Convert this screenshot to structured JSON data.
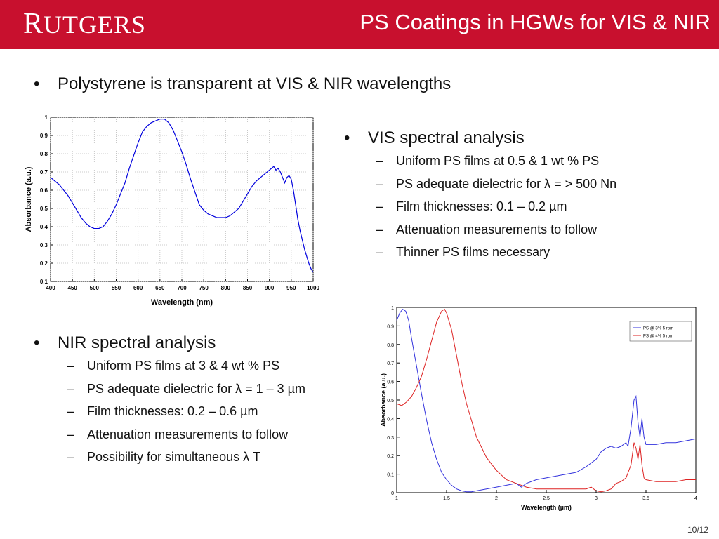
{
  "header": {
    "logo": "RUTGERS",
    "title": "PS Coatings in HGWs for VIS & NIR",
    "bg_color": "#c8102e"
  },
  "bullet_main": "Polystyrene is transparent at VIS & NIR wavelengths",
  "vis": {
    "heading": "VIS spectral analysis",
    "items": [
      "Uniform PS films at 0.5 & 1 wt % PS",
      "PS adequate dielectric for λ = > 500 Nn",
      "Film thicknesses: 0.1 – 0.2 µm",
      "Attenuation measurements to follow",
      "Thinner PS films necessary"
    ]
  },
  "nir": {
    "heading": "NIR spectral analysis",
    "items": [
      "Uniform PS films at 3 & 4 wt % PS",
      "PS adequate dielectric for λ = 1 – 3 µm",
      "Film thicknesses: 0.2 – 0.6 µm",
      "Attenuation measurements to follow",
      "Possibility for simultaneous λ T"
    ]
  },
  "page_number": "10/12",
  "chart_data": [
    {
      "type": "line",
      "xlabel": "Wavelength (nm)",
      "ylabel": "Absorbance (a.u.)",
      "xlim": [
        400,
        1000
      ],
      "ylim": [
        0.1,
        1
      ],
      "xticks": [
        "400",
        "450",
        "500",
        "550",
        "600",
        "650",
        "700",
        "750",
        "800",
        "850",
        "900",
        "950",
        "1000"
      ],
      "yticks": [
        "0.1",
        "0.2",
        "0.3",
        "0.4",
        "0.5",
        "0.6",
        "0.7",
        "0.8",
        "0.9",
        "1"
      ],
      "grid": true,
      "series": [
        {
          "color": "#0000dd",
          "x": [
            400,
            410,
            420,
            430,
            440,
            450,
            460,
            470,
            480,
            490,
            500,
            510,
            520,
            530,
            540,
            550,
            560,
            570,
            580,
            590,
            600,
            610,
            620,
            630,
            640,
            650,
            655,
            660,
            670,
            680,
            690,
            700,
            710,
            720,
            730,
            740,
            750,
            760,
            770,
            780,
            790,
            800,
            810,
            820,
            830,
            840,
            850,
            860,
            870,
            880,
            890,
            900,
            905,
            910,
            915,
            920,
            925,
            930,
            935,
            940,
            945,
            950,
            955,
            960,
            965,
            970,
            975,
            980,
            985,
            990,
            995,
            1000
          ],
          "y": [
            0.67,
            0.65,
            0.63,
            0.6,
            0.57,
            0.53,
            0.49,
            0.45,
            0.42,
            0.4,
            0.39,
            0.39,
            0.4,
            0.43,
            0.47,
            0.52,
            0.58,
            0.64,
            0.72,
            0.79,
            0.86,
            0.92,
            0.95,
            0.97,
            0.98,
            0.99,
            0.99,
            0.99,
            0.97,
            0.93,
            0.87,
            0.81,
            0.74,
            0.66,
            0.59,
            0.52,
            0.49,
            0.47,
            0.46,
            0.45,
            0.45,
            0.45,
            0.46,
            0.48,
            0.5,
            0.54,
            0.58,
            0.62,
            0.65,
            0.67,
            0.69,
            0.71,
            0.72,
            0.73,
            0.71,
            0.72,
            0.7,
            0.67,
            0.64,
            0.67,
            0.68,
            0.66,
            0.6,
            0.52,
            0.44,
            0.38,
            0.33,
            0.28,
            0.24,
            0.2,
            0.17,
            0.15
          ]
        }
      ]
    },
    {
      "type": "line",
      "xlabel": "Wavelength (µm)",
      "ylabel": "Absorbance (a.u.)",
      "xlim": [
        1,
        4
      ],
      "ylim": [
        0,
        1
      ],
      "xticks": [
        "1",
        "1.5",
        "2",
        "2.5",
        "3",
        "3.5",
        "4"
      ],
      "yticks": [
        "0",
        "0.1",
        "0.2",
        "0.3",
        "0.4",
        "0.5",
        "0.6",
        "0.7",
        "0.8",
        "0.9",
        "1"
      ],
      "grid": false,
      "legend_position": "top-right",
      "series": [
        {
          "name": "PS @ 3% 5 rpm",
          "color": "#3333dd",
          "x": [
            1,
            1.03,
            1.06,
            1.09,
            1.12,
            1.15,
            1.2,
            1.25,
            1.3,
            1.35,
            1.4,
            1.45,
            1.5,
            1.55,
            1.6,
            1.65,
            1.7,
            1.75,
            1.8,
            1.9,
            2,
            2.1,
            2.2,
            2.25,
            2.3,
            2.4,
            2.5,
            2.6,
            2.7,
            2.8,
            2.9,
            3,
            3.05,
            3.1,
            3.15,
            3.2,
            3.25,
            3.3,
            3.32,
            3.35,
            3.38,
            3.4,
            3.42,
            3.44,
            3.46,
            3.48,
            3.5,
            3.6,
            3.7,
            3.8,
            3.9,
            4
          ],
          "y": [
            0.93,
            0.97,
            0.99,
            0.98,
            0.93,
            0.83,
            0.68,
            0.53,
            0.39,
            0.27,
            0.18,
            0.11,
            0.07,
            0.04,
            0.02,
            0.01,
            0.005,
            0.005,
            0.01,
            0.02,
            0.03,
            0.04,
            0.05,
            0.03,
            0.05,
            0.07,
            0.08,
            0.09,
            0.1,
            0.11,
            0.14,
            0.18,
            0.22,
            0.24,
            0.25,
            0.24,
            0.25,
            0.27,
            0.25,
            0.35,
            0.5,
            0.52,
            0.38,
            0.3,
            0.4,
            0.3,
            0.26,
            0.26,
            0.27,
            0.27,
            0.28,
            0.29
          ]
        },
        {
          "name": "PS @ 4% 5 rpm",
          "color": "#dd2222",
          "x": [
            1,
            1.05,
            1.1,
            1.15,
            1.2,
            1.25,
            1.3,
            1.35,
            1.4,
            1.45,
            1.48,
            1.5,
            1.55,
            1.6,
            1.65,
            1.7,
            1.8,
            1.9,
            2,
            2.1,
            2.2,
            2.3,
            2.4,
            2.5,
            2.6,
            2.7,
            2.8,
            2.9,
            2.95,
            3,
            3.05,
            3.1,
            3.15,
            3.2,
            3.25,
            3.3,
            3.35,
            3.38,
            3.4,
            3.42,
            3.44,
            3.46,
            3.48,
            3.5,
            3.6,
            3.7,
            3.8,
            3.9,
            4
          ],
          "y": [
            0.48,
            0.47,
            0.49,
            0.52,
            0.57,
            0.63,
            0.72,
            0.82,
            0.92,
            0.98,
            0.99,
            0.97,
            0.88,
            0.74,
            0.6,
            0.48,
            0.3,
            0.19,
            0.12,
            0.07,
            0.05,
            0.03,
            0.02,
            0.02,
            0.02,
            0.02,
            0.02,
            0.02,
            0.03,
            0.01,
            0.005,
            0.01,
            0.02,
            0.05,
            0.06,
            0.08,
            0.15,
            0.27,
            0.24,
            0.18,
            0.26,
            0.15,
            0.08,
            0.07,
            0.06,
            0.06,
            0.06,
            0.07,
            0.07
          ]
        }
      ]
    }
  ]
}
